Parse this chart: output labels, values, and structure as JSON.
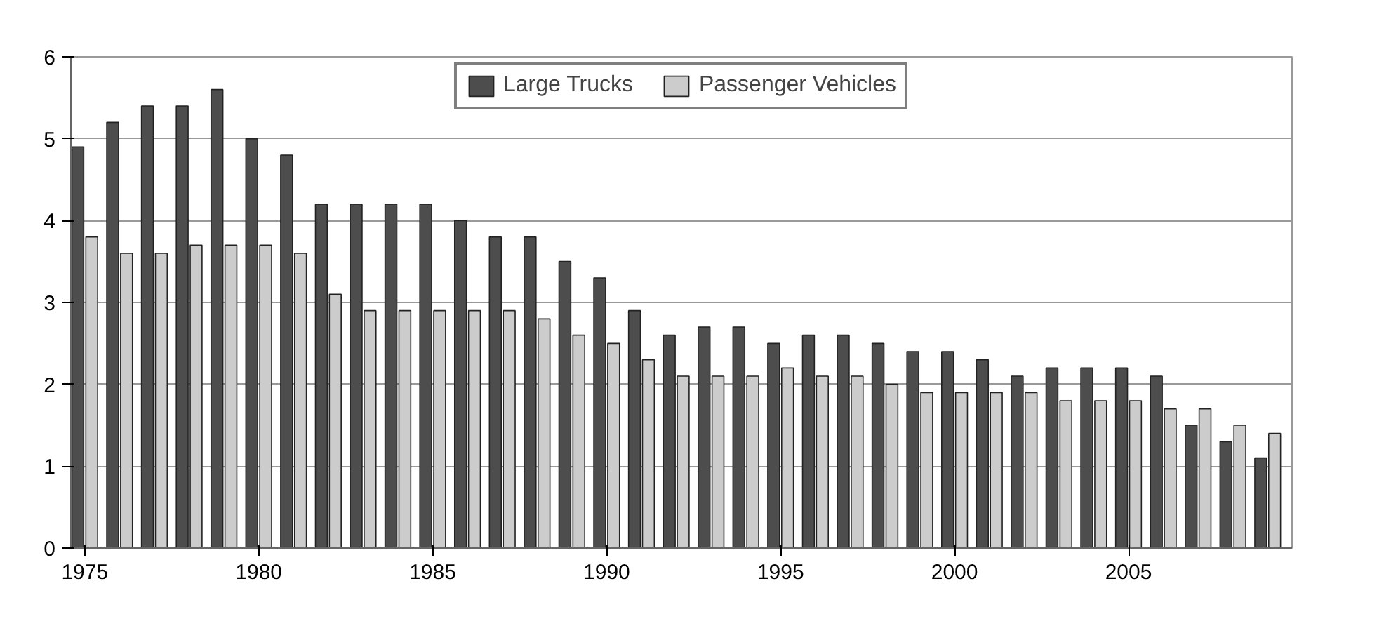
{
  "chart_data": {
    "type": "bar",
    "x": [
      1975,
      1976,
      1977,
      1978,
      1979,
      1980,
      1981,
      1982,
      1983,
      1984,
      1985,
      1986,
      1987,
      1988,
      1989,
      1990,
      1991,
      1992,
      1993,
      1994,
      1995,
      1996,
      1997,
      1998,
      1999,
      2000,
      2001,
      2002,
      2003,
      2004,
      2005,
      2006,
      2007,
      2008,
      2009
    ],
    "series": [
      {
        "name": "Large Trucks",
        "color": "#4d4d4d",
        "values": [
          4.9,
          5.2,
          5.4,
          5.4,
          5.6,
          5.0,
          4.8,
          4.2,
          4.2,
          4.2,
          4.2,
          4.0,
          3.8,
          3.8,
          3.5,
          3.3,
          2.9,
          2.6,
          2.7,
          2.7,
          2.5,
          2.6,
          2.6,
          2.5,
          2.4,
          2.4,
          2.3,
          2.1,
          2.2,
          2.2,
          2.2,
          2.1,
          1.5,
          1.3,
          1.1
        ]
      },
      {
        "name": "Passenger Vehicles",
        "color": "#cccccc",
        "values": [
          3.8,
          3.6,
          3.6,
          3.7,
          3.7,
          3.7,
          3.6,
          3.1,
          2.9,
          2.9,
          2.9,
          2.9,
          2.9,
          2.8,
          2.6,
          2.5,
          2.3,
          2.1,
          2.1,
          2.1,
          2.2,
          2.1,
          2.1,
          2.0,
          1.9,
          1.9,
          1.9,
          1.9,
          1.8,
          1.8,
          1.8,
          1.7,
          1.7,
          1.5,
          1.4
        ]
      }
    ],
    "xlim": [
      1974.6,
      2009.7
    ],
    "xticks": [
      1975,
      1980,
      1985,
      1990,
      1995,
      2000,
      2005
    ],
    "ylim": [
      0,
      6
    ],
    "yticks": [
      0,
      1,
      2,
      3,
      4,
      5,
      6
    ],
    "grid": "y",
    "legend": "top"
  }
}
